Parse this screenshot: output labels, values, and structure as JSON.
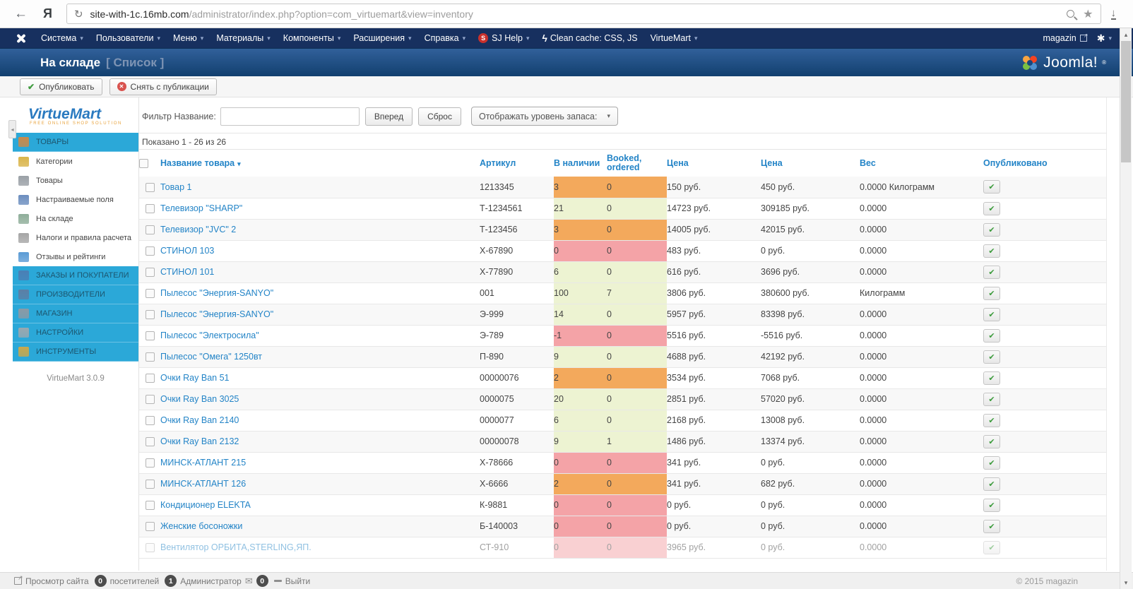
{
  "browser": {
    "url_domain": "site-with-1c.16mb.com",
    "url_path": "/administrator/index.php?option=com_virtuemart&view=inventory",
    "browser_logo": "Я"
  },
  "icons": {
    "back": "←",
    "reload": "↻",
    "star": "★",
    "download": "↓",
    "caret_down": "▾",
    "caret_up": "▴",
    "collapse_left": "◂",
    "check": "✔",
    "cross": "✕",
    "bolt": "ϟ",
    "gear": "✱",
    "mail": "✉",
    "sj": "S"
  },
  "admin_bar": {
    "menus": [
      "Система",
      "Пользователи",
      "Меню",
      "Материалы",
      "Компоненты",
      "Расширения",
      "Справка"
    ],
    "sj_help": "SJ Help",
    "clean_cache": "Clean cache: CSS, JS",
    "virtuemart": "VirtueMart",
    "site_name": "magazin"
  },
  "header": {
    "title": "На складе",
    "subtitle": "[ Список ]",
    "brand": "Joomla!",
    "brand_reg": "®"
  },
  "toolbar": {
    "publish_label": "Опубликовать",
    "unpublish_label": "Снять с публикации"
  },
  "sidebar": {
    "logo_text": "VirtueMart",
    "logo_tagline": "free online shop solution",
    "version": "VirtueMart 3.0.9",
    "items": [
      {
        "label": "ТОВАРЫ",
        "section": true,
        "active": true,
        "icon": "products-folder-icon",
        "icon_color": "#c98a4b"
      },
      {
        "label": "Категории",
        "section": false,
        "icon": "categories-folder-icon",
        "icon_color": "#d9b44a"
      },
      {
        "label": "Товары",
        "section": false,
        "icon": "camera-icon",
        "icon_color": "#9aa0a6"
      },
      {
        "label": "Настраиваемые поля",
        "section": false,
        "icon": "custom-fields-icon",
        "icon_color": "#6c8ebf"
      },
      {
        "label": "На складе",
        "section": false,
        "icon": "inventory-chart-icon",
        "icon_color": "#8fae9a"
      },
      {
        "label": "Налоги и правила расчета",
        "section": false,
        "icon": "calculator-icon",
        "icon_color": "#a6a6a6"
      },
      {
        "label": "Отзывы и рейтинги",
        "section": false,
        "icon": "reviews-bubble-icon",
        "icon_color": "#5b9bd5"
      },
      {
        "label": "ЗАКАЗЫ И ПОКУПАТЕЛИ",
        "section": true,
        "icon": "orders-pages-icon",
        "icon_color": "#4a7fb5"
      },
      {
        "label": "ПРОИЗВОДИТЕЛИ",
        "section": true,
        "icon": "manufacturers-wrench-icon",
        "icon_color": "#5b7fa6"
      },
      {
        "label": "МАГАЗИН",
        "section": true,
        "icon": "shop-icon",
        "icon_color": "#8a9aa6"
      },
      {
        "label": "НАСТРОЙКИ",
        "section": true,
        "icon": "config-tools-icon",
        "icon_color": "#98a8b0"
      },
      {
        "label": "ИНСТРУМЕНТЫ",
        "section": true,
        "icon": "toolbox-icon",
        "icon_color": "#c9a84b"
      }
    ]
  },
  "filter": {
    "label": "Фильтр Название:",
    "input_value": "",
    "go_label": "Вперед",
    "reset_label": "Сброс",
    "stock_dropdown_label": "Отображать уровень запаса:",
    "shown_text": "Показано 1 - 26 из 26"
  },
  "table": {
    "columns": [
      "Название товара",
      "Артикул",
      "В наличии",
      "Booked, ordered",
      "Цена",
      "Цена",
      "Вес",
      "Опубликовано"
    ],
    "level_colors": {
      "orange": "#F3A95C",
      "green": "#EDF3D2",
      "red": "#F4A3A7"
    },
    "rows": [
      {
        "name": "Товар 1",
        "sku": "1213345",
        "stock": "3",
        "booked": "0",
        "level": "orange",
        "price": "150 руб.",
        "total": "450 руб.",
        "weight": "0.0000 Килограмм",
        "published": true,
        "faded": false
      },
      {
        "name": "Телевизор \"SHARP\"",
        "sku": "Т-1234561",
        "stock": "21",
        "booked": "0",
        "level": "green",
        "price": "14723 руб.",
        "total": "309185 руб.",
        "weight": "0.0000",
        "published": true,
        "faded": false
      },
      {
        "name": "Телевизор \"JVC\" 2",
        "sku": "Т-123456",
        "stock": "3",
        "booked": "0",
        "level": "orange",
        "price": "14005 руб.",
        "total": "42015 руб.",
        "weight": "0.0000",
        "published": true,
        "faded": false
      },
      {
        "name": "СТИНОЛ 103",
        "sku": "Х-67890",
        "stock": "0",
        "booked": "0",
        "level": "red",
        "price": "483 руб.",
        "total": "0 руб.",
        "weight": "0.0000",
        "published": true,
        "faded": false
      },
      {
        "name": "СТИНОЛ 101",
        "sku": "Х-77890",
        "stock": "6",
        "booked": "0",
        "level": "green",
        "price": "616 руб.",
        "total": "3696 руб.",
        "weight": "0.0000",
        "published": true,
        "faded": false
      },
      {
        "name": "Пылесос \"Энергия-SANYO\"",
        "sku": "001",
        "stock": "100",
        "booked": "7",
        "level": "green",
        "price": "3806 руб.",
        "total": "380600 руб.",
        "weight": "Килограмм",
        "published": true,
        "faded": false
      },
      {
        "name": "Пылесос \"Энергия-SANYO\"",
        "sku": "Э-999",
        "stock": "14",
        "booked": "0",
        "level": "green",
        "price": "5957 руб.",
        "total": "83398 руб.",
        "weight": "0.0000",
        "published": true,
        "faded": false
      },
      {
        "name": "Пылесос \"Электросила\"",
        "sku": "Э-789",
        "stock": "-1",
        "booked": "0",
        "level": "red",
        "price": "5516 руб.",
        "total": "-5516 руб.",
        "weight": "0.0000",
        "published": true,
        "faded": false
      },
      {
        "name": "Пылесос \"Омега\" 1250вт",
        "sku": "П-890",
        "stock": "9",
        "booked": "0",
        "level": "green",
        "price": "4688 руб.",
        "total": "42192 руб.",
        "weight": "0.0000",
        "published": true,
        "faded": false
      },
      {
        "name": "Очки Ray Ban 51",
        "sku": "00000076",
        "stock": "2",
        "booked": "0",
        "level": "orange",
        "price": "3534 руб.",
        "total": "7068 руб.",
        "weight": "0.0000",
        "published": true,
        "faded": false
      },
      {
        "name": "Очки Ray Ban 3025",
        "sku": "0000075",
        "stock": "20",
        "booked": "0",
        "level": "green",
        "price": "2851 руб.",
        "total": "57020 руб.",
        "weight": "0.0000",
        "published": true,
        "faded": false
      },
      {
        "name": "Очки Ray Ban 2140",
        "sku": "0000077",
        "stock": "6",
        "booked": "0",
        "level": "green",
        "price": "2168 руб.",
        "total": "13008 руб.",
        "weight": "0.0000",
        "published": true,
        "faded": false
      },
      {
        "name": "Очки Ray Ban 2132",
        "sku": "00000078",
        "stock": "9",
        "booked": "1",
        "level": "green",
        "price": "1486 руб.",
        "total": "13374 руб.",
        "weight": "0.0000",
        "published": true,
        "faded": false
      },
      {
        "name": "МИНСК-АТЛАНТ 215",
        "sku": "Х-78666",
        "stock": "0",
        "booked": "0",
        "level": "red",
        "price": "341 руб.",
        "total": "0 руб.",
        "weight": "0.0000",
        "published": true,
        "faded": false
      },
      {
        "name": "МИНСК-АТЛАНТ 126",
        "sku": "Х-6666",
        "stock": "2",
        "booked": "0",
        "level": "orange",
        "price": "341 руб.",
        "total": "682 руб.",
        "weight": "0.0000",
        "published": true,
        "faded": false
      },
      {
        "name": "Кондиционер ELEKTA",
        "sku": "К-9881",
        "stock": "0",
        "booked": "0",
        "level": "red",
        "price": "0 руб.",
        "total": "0 руб.",
        "weight": "0.0000",
        "published": true,
        "faded": false
      },
      {
        "name": "Женские босоножки",
        "sku": "Б-140003",
        "stock": "0",
        "booked": "0",
        "level": "red",
        "price": "0 руб.",
        "total": "0 руб.",
        "weight": "0.0000",
        "published": true,
        "faded": false
      },
      {
        "name": "Вентилятор ОРБИТА,STERLING,ЯП.",
        "sku": "СТ-910",
        "stock": "0",
        "booked": "0",
        "level": "red",
        "price": "3965 руб.",
        "total": "0 руб.",
        "weight": "0.0000",
        "published": true,
        "faded": true
      }
    ]
  },
  "footer": {
    "view_site": "Просмотр сайта",
    "visitors_count": "0",
    "visitors_label": "посетителей",
    "admins_count": "1",
    "admins_label": "Администратор",
    "messages_count": "0",
    "logout_label": "Выйти",
    "copyright": "© 2015 magazin"
  }
}
